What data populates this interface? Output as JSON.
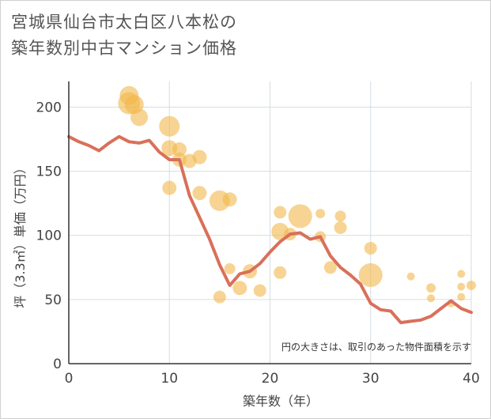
{
  "title_line1": "宮城県仙台市太白区八本松の",
  "title_line2": "築年数別中古マンション価格",
  "colors": {
    "bubble": "#f2b84b",
    "line": "#d9705a",
    "grid": "#d6dde3",
    "axis": "#333333",
    "background": "#ffffff"
  },
  "chart_data": {
    "type": "scatter",
    "xlabel": "築年数（年）",
    "ylabel": "坪（3.3㎡）単価（万円）",
    "xlim": [
      0,
      40
    ],
    "ylim": [
      0,
      220
    ],
    "xticks": [
      "0",
      "10",
      "20",
      "30",
      "40"
    ],
    "yticks": [
      "0",
      "50",
      "100",
      "150",
      "200"
    ],
    "xtick_values": [
      0,
      10,
      20,
      30,
      40
    ],
    "ytick_values": [
      0,
      50,
      100,
      150,
      200
    ],
    "grid": true,
    "note": "円の大きさは、取引のあった物件面積を示す",
    "bubbles": [
      {
        "x": 6,
        "y": 209,
        "size": 1.2
      },
      {
        "x": 6,
        "y": 203,
        "size": 1.4
      },
      {
        "x": 6.5,
        "y": 202,
        "size": 1.2
      },
      {
        "x": 7,
        "y": 192,
        "size": 1.1
      },
      {
        "x": 10,
        "y": 185,
        "size": 1.3
      },
      {
        "x": 10,
        "y": 168,
        "size": 1.0
      },
      {
        "x": 11,
        "y": 167,
        "size": 0.9
      },
      {
        "x": 11,
        "y": 159,
        "size": 0.9
      },
      {
        "x": 12,
        "y": 158,
        "size": 0.9
      },
      {
        "x": 13,
        "y": 161,
        "size": 0.9
      },
      {
        "x": 10,
        "y": 137,
        "size": 0.9
      },
      {
        "x": 13,
        "y": 133,
        "size": 0.9
      },
      {
        "x": 15,
        "y": 127,
        "size": 1.3
      },
      {
        "x": 16,
        "y": 128,
        "size": 0.9
      },
      {
        "x": 16,
        "y": 74,
        "size": 0.7
      },
      {
        "x": 17,
        "y": 59,
        "size": 0.9
      },
      {
        "x": 18,
        "y": 72,
        "size": 0.9
      },
      {
        "x": 15,
        "y": 52,
        "size": 0.8
      },
      {
        "x": 19,
        "y": 57,
        "size": 0.8
      },
      {
        "x": 21,
        "y": 118,
        "size": 0.8
      },
      {
        "x": 21,
        "y": 103,
        "size": 1.1
      },
      {
        "x": 22,
        "y": 101,
        "size": 0.8
      },
      {
        "x": 23,
        "y": 115,
        "size": 1.5
      },
      {
        "x": 21,
        "y": 71,
        "size": 0.8
      },
      {
        "x": 25,
        "y": 117,
        "size": 0.6
      },
      {
        "x": 25,
        "y": 99,
        "size": 0.7
      },
      {
        "x": 26,
        "y": 75,
        "size": 0.8
      },
      {
        "x": 27,
        "y": 115,
        "size": 0.7
      },
      {
        "x": 27,
        "y": 106,
        "size": 0.8
      },
      {
        "x": 30,
        "y": 90,
        "size": 0.8
      },
      {
        "x": 30,
        "y": 69,
        "size": 1.5
      },
      {
        "x": 34,
        "y": 68,
        "size": 0.5
      },
      {
        "x": 36,
        "y": 59,
        "size": 0.6
      },
      {
        "x": 36,
        "y": 51,
        "size": 0.5
      },
      {
        "x": 39,
        "y": 70,
        "size": 0.5
      },
      {
        "x": 39,
        "y": 60,
        "size": 0.5
      },
      {
        "x": 39,
        "y": 52,
        "size": 0.5
      },
      {
        "x": 40,
        "y": 61,
        "size": 0.6
      },
      {
        "x": 38,
        "y": 47,
        "size": 0.5
      }
    ],
    "line": [
      {
        "x": 0,
        "y": 177
      },
      {
        "x": 1,
        "y": 173
      },
      {
        "x": 2,
        "y": 170
      },
      {
        "x": 3,
        "y": 166
      },
      {
        "x": 4,
        "y": 172
      },
      {
        "x": 5,
        "y": 177
      },
      {
        "x": 6,
        "y": 173
      },
      {
        "x": 7,
        "y": 172
      },
      {
        "x": 8,
        "y": 174
      },
      {
        "x": 9,
        "y": 165
      },
      {
        "x": 10,
        "y": 159
      },
      {
        "x": 11,
        "y": 159
      },
      {
        "x": 12,
        "y": 131
      },
      {
        "x": 13,
        "y": 114
      },
      {
        "x": 14,
        "y": 97
      },
      {
        "x": 15,
        "y": 77
      },
      {
        "x": 16,
        "y": 61
      },
      {
        "x": 17,
        "y": 70
      },
      {
        "x": 18,
        "y": 72
      },
      {
        "x": 19,
        "y": 78
      },
      {
        "x": 20,
        "y": 87
      },
      {
        "x": 21,
        "y": 95
      },
      {
        "x": 22,
        "y": 101
      },
      {
        "x": 23,
        "y": 102
      },
      {
        "x": 24,
        "y": 97
      },
      {
        "x": 25,
        "y": 99
      },
      {
        "x": 26,
        "y": 84
      },
      {
        "x": 27,
        "y": 75
      },
      {
        "x": 28,
        "y": 69
      },
      {
        "x": 29,
        "y": 62
      },
      {
        "x": 30,
        "y": 47
      },
      {
        "x": 31,
        "y": 42
      },
      {
        "x": 32,
        "y": 41
      },
      {
        "x": 33,
        "y": 32
      },
      {
        "x": 34,
        "y": 33
      },
      {
        "x": 35,
        "y": 34
      },
      {
        "x": 36,
        "y": 37
      },
      {
        "x": 37,
        "y": 43
      },
      {
        "x": 38,
        "y": 49
      },
      {
        "x": 39,
        "y": 43
      },
      {
        "x": 40,
        "y": 40
      }
    ]
  }
}
